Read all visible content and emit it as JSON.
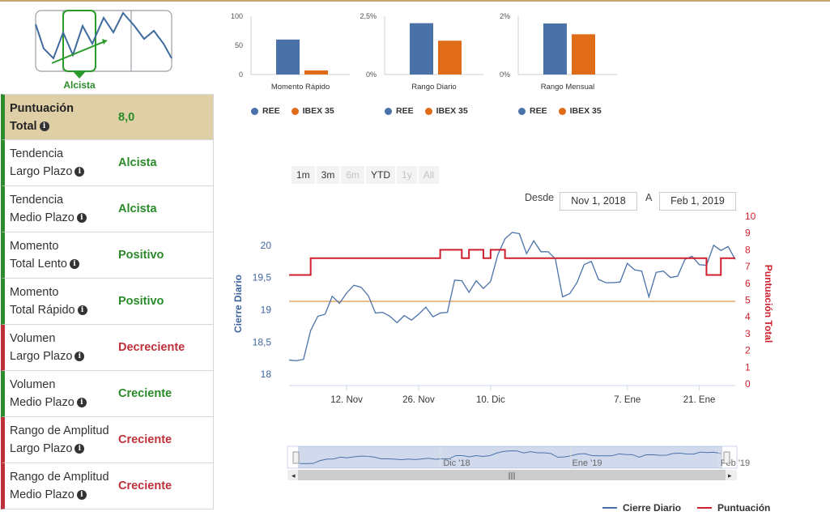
{
  "trend_widget": {
    "selected_label": "Alcista"
  },
  "score_table": {
    "rows": [
      {
        "label1": "Puntuación",
        "label2": "Total",
        "value": "8,0",
        "status": "green",
        "type": "total"
      },
      {
        "label1": "Tendencia",
        "label2": "Largo Plazo",
        "value": "Alcista",
        "status": "green"
      },
      {
        "label1": "Tendencia",
        "label2": "Medio Plazo",
        "value": "Alcista",
        "status": "green"
      },
      {
        "label1": "Momento",
        "label2": "Total Lento",
        "value": "Positivo",
        "status": "green"
      },
      {
        "label1": "Momento",
        "label2": "Total Rápido",
        "value": "Positivo",
        "status": "green"
      },
      {
        "label1": "Volumen",
        "label2": "Largo Plazo",
        "value": "Decreciente",
        "status": "red"
      },
      {
        "label1": "Volumen",
        "label2": "Medio Plazo",
        "value": "Creciente",
        "status": "green"
      },
      {
        "label1": "Rango de Amplitud",
        "label2": "Largo Plazo",
        "value": "Creciente",
        "status": "red"
      },
      {
        "label1": "Rango de Amplitud",
        "label2": "Medio Plazo",
        "value": "Creciente",
        "status": "red"
      }
    ]
  },
  "colors": {
    "ree": "#4a72a8",
    "ibex": "#e06c1a",
    "green": "#2a8a2a",
    "red": "#c0303a",
    "score_line": "#cf1f2e",
    "price_line": "#4a72a8"
  },
  "mini_legend": {
    "a": "REE",
    "b": "IBEX 35"
  },
  "range_selector": {
    "buttons": [
      {
        "label": "1m",
        "enabled": true
      },
      {
        "label": "3m",
        "enabled": true
      },
      {
        "label": "6m",
        "enabled": false
      },
      {
        "label": "YTD",
        "enabled": true
      },
      {
        "label": "1y",
        "enabled": false
      },
      {
        "label": "All",
        "enabled": false
      }
    ],
    "from_label": "Desde",
    "from_value": "Nov 1, 2018",
    "to_label": "A",
    "to_value": "Feb 1, 2019"
  },
  "navigator": {
    "labels": [
      "Dic '18",
      "Ene '19",
      "Feb '19"
    ]
  },
  "bottom_legend": {
    "price": "Cierre Diario",
    "score": "Puntuación"
  },
  "chart_data": [
    {
      "type": "bar",
      "title": "",
      "xlabel": "Momento Rápido",
      "yticks": [
        "0",
        "50",
        "100"
      ],
      "ylim": [
        0,
        100
      ],
      "series": [
        {
          "name": "REE",
          "values": [
            60
          ]
        },
        {
          "name": "IBEX 35",
          "values": [
            7
          ]
        }
      ]
    },
    {
      "type": "bar",
      "title": "",
      "xlabel": "Rango Diario",
      "yticks": [
        "0%",
        "2,5%"
      ],
      "ylim": [
        0,
        2.5
      ],
      "series": [
        {
          "name": "REE",
          "values": [
            2.2
          ]
        },
        {
          "name": "IBEX 35",
          "values": [
            1.45
          ]
        }
      ]
    },
    {
      "type": "bar",
      "title": "",
      "xlabel": "Rango Mensual",
      "yticks": [
        "0%",
        "2%"
      ],
      "ylim": [
        0,
        2
      ],
      "series": [
        {
          "name": "REE",
          "values": [
            1.75
          ]
        },
        {
          "name": "IBEX 35",
          "values": [
            1.38
          ]
        }
      ]
    },
    {
      "type": "line",
      "ylabel_left": "Cierre Diario",
      "ylabel_right": "Puntuación Total",
      "yticks_left": [
        "18",
        "18,5",
        "19",
        "19,5",
        "20"
      ],
      "yticks_right": [
        "0",
        "1",
        "2",
        "3",
        "4",
        "5",
        "6",
        "7",
        "8",
        "9",
        "10"
      ],
      "ylim_left": [
        17.85,
        20.45
      ],
      "ylim_right": [
        0,
        10
      ],
      "x_tick_labels": [
        "12. Nov",
        "26. Nov",
        "10. Dic",
        "7. Ene",
        "21. Ene"
      ],
      "reference_line_left": 19.13,
      "series": [
        {
          "name": "Cierre Diario",
          "values": [
            18.22,
            18.21,
            18.23,
            18.68,
            18.9,
            18.93,
            19.21,
            19.1,
            19.26,
            19.38,
            19.35,
            19.22,
            18.95,
            18.96,
            18.9,
            18.8,
            18.91,
            18.84,
            18.93,
            19.04,
            18.89,
            18.95,
            18.96,
            19.46,
            19.45,
            19.27,
            19.45,
            19.33,
            19.44,
            19.85,
            20.1,
            20.2,
            20.18,
            19.87,
            20.07,
            19.9,
            19.9,
            19.79,
            19.2,
            19.25,
            19.42,
            19.7,
            19.75,
            19.47,
            19.42,
            19.42,
            19.43,
            19.72,
            19.62,
            19.6,
            19.2,
            19.58,
            19.6,
            19.5,
            19.52,
            19.78,
            19.83,
            19.7,
            19.69,
            20.0,
            19.92,
            19.98,
            19.78
          ]
        },
        {
          "name": "Puntuación",
          "values": [
            6.5,
            6.5,
            6.5,
            7.5,
            7.5,
            7.5,
            7.5,
            7.5,
            7.5,
            7.5,
            7.5,
            7.5,
            7.5,
            7.5,
            7.5,
            7.5,
            7.5,
            7.5,
            7.5,
            7.5,
            7.5,
            8.0,
            8.0,
            8.0,
            7.5,
            8.0,
            8.0,
            7.5,
            8.0,
            8.0,
            7.5,
            7.5,
            7.5,
            7.5,
            7.5,
            7.5,
            7.5,
            7.5,
            7.5,
            7.5,
            7.5,
            7.5,
            7.5,
            7.5,
            7.5,
            7.5,
            7.5,
            7.5,
            7.5,
            7.5,
            7.5,
            7.5,
            7.5,
            7.5,
            7.5,
            7.5,
            7.5,
            7.5,
            6.5,
            6.5,
            7.5,
            7.5,
            7.5
          ]
        }
      ]
    }
  ]
}
